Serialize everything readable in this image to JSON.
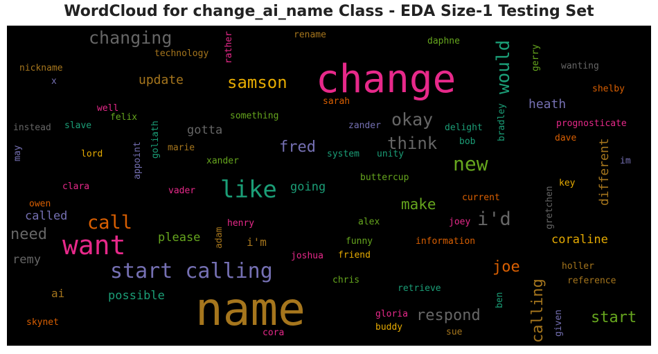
{
  "title": "WordCloud for change_ai_name Class - EDA Size-1 Testing Set",
  "palette": {
    "green": "#1b9e77",
    "orange": "#d95f02",
    "purple": "#7570b3",
    "pink": "#e7298a",
    "lime": "#66a61e",
    "yellow": "#e6ab02",
    "brown": "#a6761d",
    "grey": "#666666"
  },
  "words": {
    "name": "name",
    "change": "change",
    "want": "want",
    "start_calling": "start calling",
    "like": "like",
    "new": "new",
    "call": "call",
    "changing": "changing",
    "would": "would",
    "okay": "okay",
    "id": "i'd",
    "think": "think",
    "samson": "samson",
    "fred": "fred",
    "calling": "calling",
    "make": "make",
    "joe": "joe",
    "need": "need",
    "respond": "respond",
    "start": "start",
    "update": "update",
    "heath": "heath",
    "different": "different",
    "coraline": "coraline",
    "possible": "possible",
    "going": "going",
    "gotta": "gotta",
    "please": "please",
    "called": "called",
    "remy": "remy",
    "im": "i'm",
    "ai": "ai",
    "technology": "technology",
    "rename": "rename",
    "daphne": "daphne",
    "nickname": "nickname",
    "rather": "rather",
    "gerry": "gerry",
    "wanting": "wanting",
    "x": "x",
    "shelby": "shelby",
    "sarah": "sarah",
    "well": "well",
    "felix": "felix",
    "something": "something",
    "instead": "instead",
    "slave": "slave",
    "zander": "zander",
    "delight": "delight",
    "bradley": "bradley",
    "prognosticate": "prognosticate",
    "may": "may",
    "marie": "marie",
    "bob": "bob",
    "dave": "dave",
    "lord": "lord",
    "appoint": "appoint",
    "goliath": "goliath",
    "xander": "xander",
    "system": "system",
    "unity": "unity",
    "im2": "im",
    "buttercup": "buttercup",
    "key": "key",
    "clara": "clara",
    "vader": "vader",
    "gretchen": "gretchen",
    "current": "current",
    "owen": "owen",
    "alex": "alex",
    "joey": "joey",
    "henry": "henry",
    "adam": "adam",
    "funny": "funny",
    "information": "information",
    "joshua": "joshua",
    "friend": "friend",
    "holler": "holler",
    "chris": "chris",
    "reference": "reference",
    "retrieve": "retrieve",
    "ben": "ben",
    "given": "given",
    "gloria": "gloria",
    "skynet": "skynet",
    "buddy": "buddy",
    "cora": "cora",
    "sue": "sue"
  }
}
